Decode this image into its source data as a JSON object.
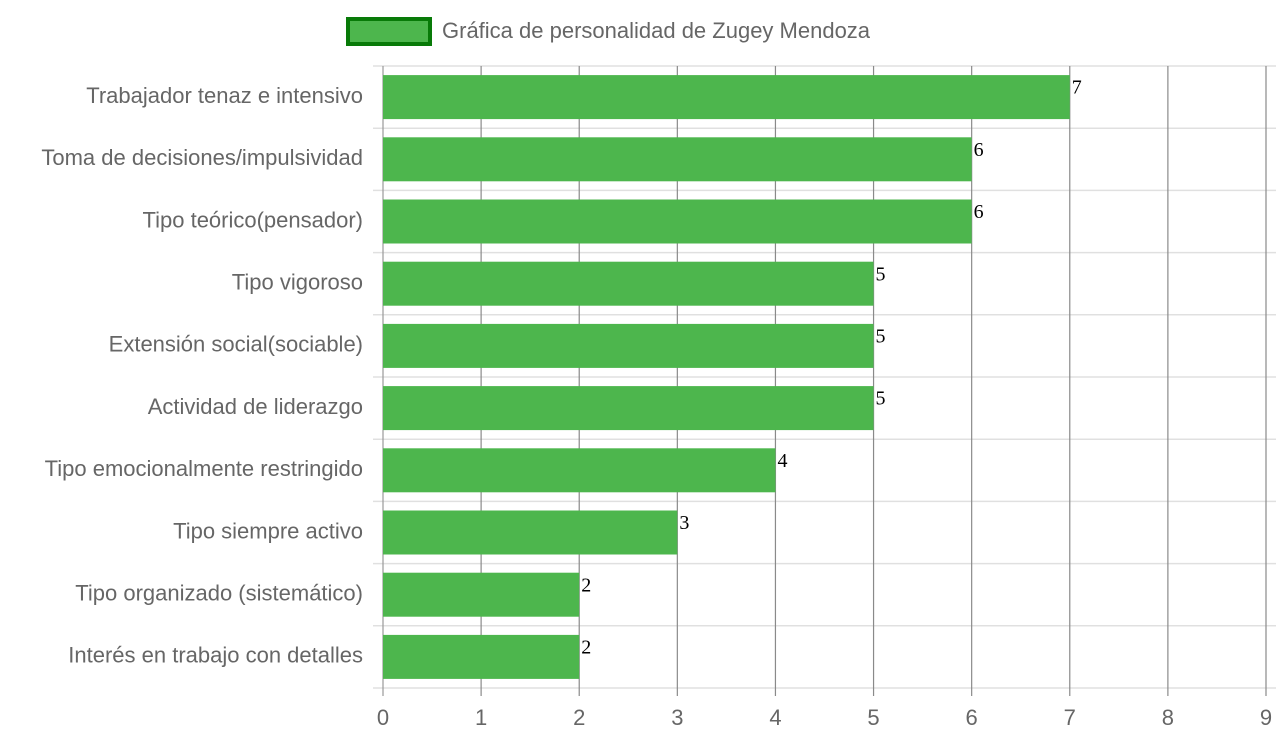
{
  "chart_data": {
    "type": "bar",
    "orientation": "horizontal",
    "categories": [
      "Trabajador tenaz e intensivo",
      "Toma de decisiones/impulsividad",
      "Tipo teórico(pensador)",
      "Tipo vigoroso",
      "Extensión social(sociable)",
      "Actividad de liderazgo",
      "Tipo emocionalmente restringido",
      "Tipo siempre activo",
      "Tipo organizado (sistemático)",
      "Interés en trabajo con detalles"
    ],
    "series": [
      {
        "name": "Gráfica de personalidad de Zugey Mendoza",
        "color": "#4db64d",
        "border_color": "#087a08",
        "values": [
          7,
          6,
          6,
          5,
          5,
          5,
          4,
          3,
          2,
          2
        ]
      }
    ],
    "xlim": [
      0,
      9
    ],
    "xticks": [
      0,
      1,
      2,
      3,
      4,
      5,
      6,
      7,
      8,
      9
    ],
    "grid": true,
    "legend": "top"
  }
}
